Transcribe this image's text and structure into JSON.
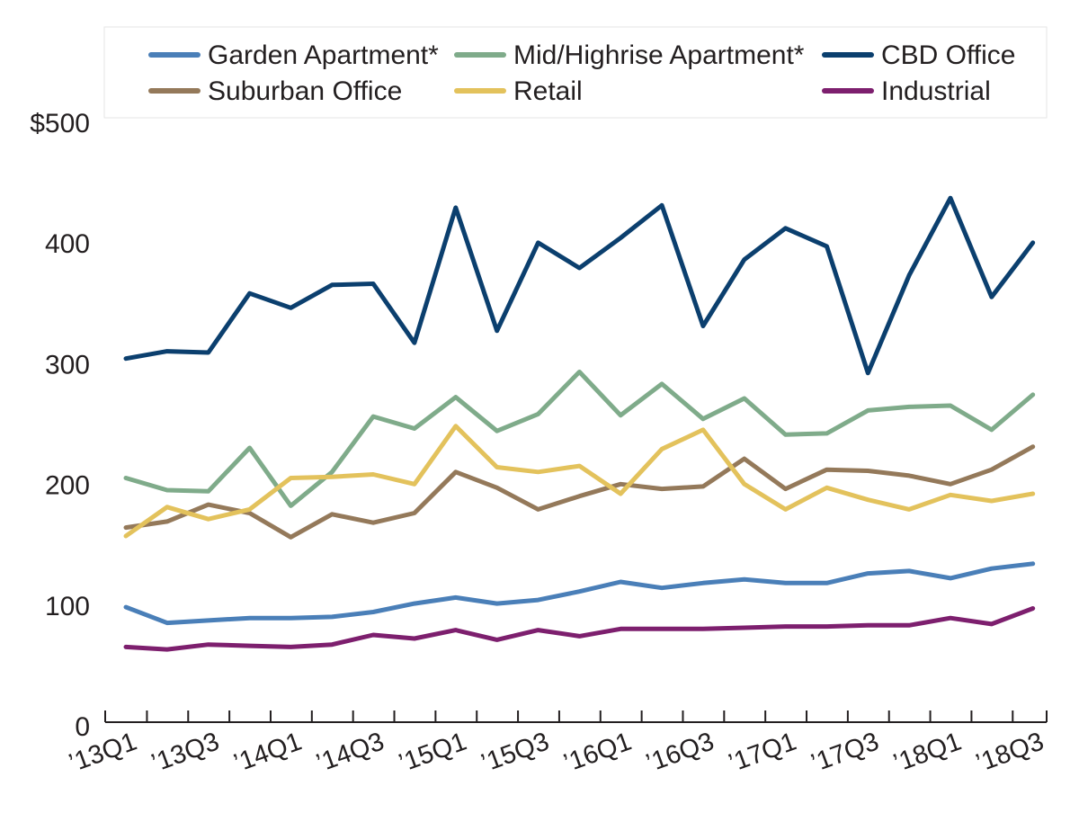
{
  "chart_data": {
    "type": "line",
    "title": "",
    "xlabel": "",
    "ylabel": "",
    "ylim": [
      0,
      500
    ],
    "y_ticks": [
      "0",
      "100",
      "200",
      "300",
      "400",
      "$500"
    ],
    "x": [
      "13Q1",
      "13Q2",
      "13Q3",
      "13Q4",
      "14Q1",
      "14Q2",
      "14Q3",
      "14Q4",
      "15Q1",
      "15Q2",
      "15Q3",
      "15Q4",
      "16Q1",
      "16Q2",
      "16Q3",
      "16Q4",
      "17Q1",
      "17Q2",
      "17Q3",
      "17Q4",
      "18Q1",
      "18Q2",
      "18Q3"
    ],
    "x_tick_labels": [
      "’13Q1",
      "’13Q3",
      "’14Q1",
      "’14Q3",
      "’15Q1",
      "’15Q3",
      "’16Q1",
      "’16Q3",
      "’17Q1",
      "’17Q3",
      "’18Q1",
      "’18Q3"
    ],
    "legend_position": "top",
    "grid": false,
    "series": [
      {
        "name": "Garden Apartment*",
        "color": "#4a7fb8",
        "values": [
          99,
          86,
          88,
          90,
          90,
          91,
          95,
          102,
          107,
          102,
          105,
          112,
          120,
          115,
          119,
          122,
          119,
          119,
          127,
          129,
          123,
          131,
          135
        ]
      },
      {
        "name": "Mid/Highrise Apartment*",
        "color": "#7fab8a",
        "values": [
          206,
          196,
          195,
          231,
          183,
          211,
          257,
          247,
          273,
          245,
          259,
          294,
          258,
          284,
          255,
          272,
          242,
          243,
          262,
          265,
          266,
          246,
          275
        ]
      },
      {
        "name": "CBD Office",
        "color": "#0b3f6e",
        "values": [
          305,
          311,
          310,
          359,
          347,
          366,
          367,
          318,
          430,
          328,
          401,
          380,
          405,
          432,
          332,
          387,
          413,
          398,
          293,
          374,
          438,
          356,
          401
        ]
      },
      {
        "name": "Suburban Office",
        "color": "#94795a",
        "values": [
          165,
          170,
          184,
          177,
          157,
          176,
          169,
          177,
          211,
          198,
          180,
          191,
          201,
          197,
          199,
          222,
          197,
          213,
          212,
          208,
          201,
          213,
          232
        ]
      },
      {
        "name": "Retail",
        "color": "#e3c25c",
        "values": [
          158,
          182,
          172,
          180,
          206,
          207,
          209,
          201,
          249,
          215,
          211,
          216,
          193,
          230,
          246,
          201,
          180,
          198,
          188,
          180,
          192,
          187,
          193
        ]
      },
      {
        "name": "Industrial",
        "color": "#7d1f6e",
        "values": [
          66,
          64,
          68,
          67,
          66,
          68,
          76,
          73,
          80,
          72,
          80,
          75,
          81,
          81,
          81,
          82,
          83,
          83,
          84,
          84,
          90,
          85,
          98
        ]
      }
    ]
  }
}
